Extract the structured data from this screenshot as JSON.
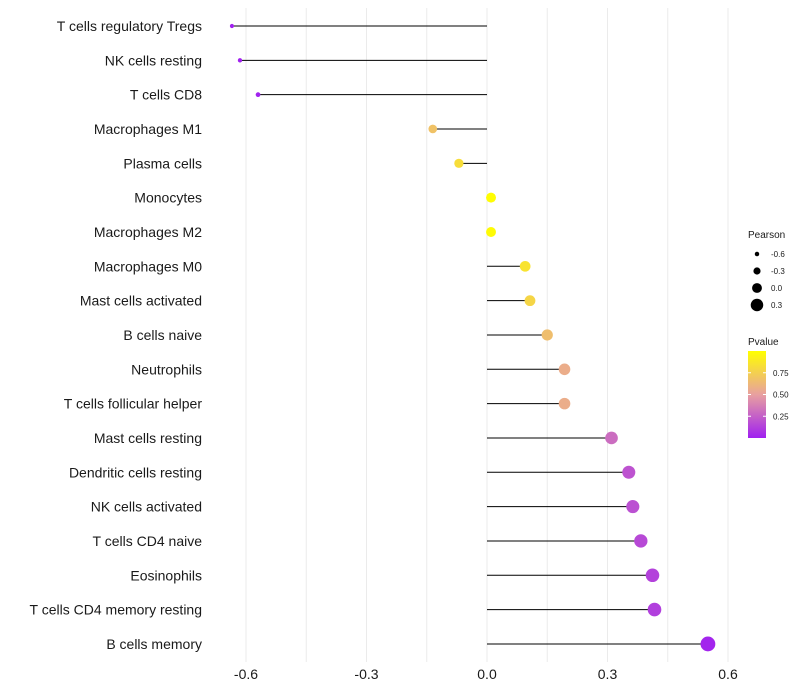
{
  "chart_data": {
    "type": "lollipop",
    "title": "",
    "xlabel": "",
    "ylabel": "",
    "xlim": [
      -0.72,
      0.78
    ],
    "x_ticks": [
      {
        "value": -0.6,
        "label": "-0.6"
      },
      {
        "value": -0.3,
        "label": "-0.3"
      },
      {
        "value": 0.0,
        "label": "0.0"
      },
      {
        "value": 0.3,
        "label": "0.3"
      },
      {
        "value": 0.6,
        "label": "0.6"
      }
    ],
    "grid": true,
    "categories": [
      "T cells regulatory  Tregs",
      "NK cells resting",
      "T cells CD8",
      "Macrophages M1",
      "Plasma cells",
      "Monocytes",
      "Macrophages M2",
      "Macrophages M0",
      "Mast cells activated",
      "B cells naive",
      "Neutrophils",
      "T cells follicular helper",
      "Mast cells resting",
      "Dendritic cells resting",
      "NK cells activated",
      "T cells CD4 naive",
      "Eosinophils",
      "T cells CD4 memory resting",
      "B cells memory"
    ],
    "pearson": [
      -0.635,
      -0.615,
      -0.57,
      -0.135,
      -0.07,
      0.01,
      0.01,
      0.095,
      0.107,
      0.15,
      0.193,
      0.193,
      0.31,
      0.353,
      0.363,
      0.383,
      0.412,
      0.417,
      0.55
    ],
    "pvalue": [
      0.004,
      0.005,
      0.01,
      0.68,
      0.82,
      0.99,
      0.98,
      0.85,
      0.78,
      0.66,
      0.57,
      0.57,
      0.3,
      0.2,
      0.19,
      0.16,
      0.13,
      0.12,
      0.02
    ],
    "size_legend": {
      "title": "Pearson",
      "entries": [
        {
          "value": -0.6,
          "label": "-0.6"
        },
        {
          "value": -0.3,
          "label": "-0.3"
        },
        {
          "value": 0.0,
          "label": "0.0"
        },
        {
          "value": 0.3,
          "label": "0.3"
        }
      ]
    },
    "color_legend": {
      "title": "Pvalue",
      "range": [
        0.0,
        1.0
      ],
      "ticks": [
        {
          "value": 0.75,
          "label": "0.75"
        },
        {
          "value": 0.5,
          "label": "0.50"
        },
        {
          "value": 0.25,
          "label": "0.25"
        }
      ],
      "low_color": "#a020f0",
      "mid_color": "#e8a0a0",
      "high_color": "#ffff00"
    },
    "stem_color": "#000000",
    "grid_color": "#ebebeb"
  }
}
